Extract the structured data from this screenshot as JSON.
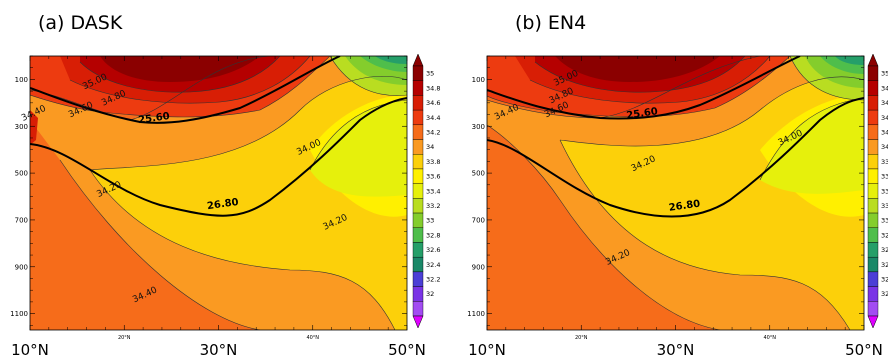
{
  "chart_data": [
    {
      "type": "contour",
      "title": "(a) DASK",
      "x_ticks": [
        {
          "value": 10,
          "label": "10°N",
          "size": "large"
        },
        {
          "value": 20,
          "label": "20°N",
          "size": "small"
        },
        {
          "value": 30,
          "label": "30°N",
          "size": "large"
        },
        {
          "value": 40,
          "label": "40°N",
          "size": "small"
        },
        {
          "value": 50,
          "label": "50°N",
          "size": "large"
        }
      ],
      "xlim": [
        10,
        50
      ],
      "y_ticks": [
        100,
        300,
        500,
        700,
        900,
        1100
      ],
      "ylim": [
        0,
        1170
      ],
      "y_inverted": true,
      "contour_labels": [
        {
          "text": "35.00",
          "x": 17.0,
          "y": 120
        },
        {
          "text": "34.80",
          "x": 19.0,
          "y": 190
        },
        {
          "text": "34.60",
          "x": 15.5,
          "y": 240
        },
        {
          "text": "34.40",
          "x": 10.5,
          "y": 255
        },
        {
          "text": "34.00",
          "x": 39.7,
          "y": 400
        },
        {
          "text": "34.20",
          "x": 18.5,
          "y": 580
        },
        {
          "text": "34.20",
          "x": 42.5,
          "y": 720
        },
        {
          "text": "34.40",
          "x": 22.3,
          "y": 1030
        }
      ],
      "density_labels": [
        {
          "text": "25.60",
          "x": 23.2,
          "y": 278
        },
        {
          "text": "26.80",
          "x": 30.5,
          "y": 645
        }
      ]
    },
    {
      "type": "contour",
      "title": "(b) EN4",
      "x_ticks": [
        {
          "value": 10,
          "label": "10°N",
          "size": "large"
        },
        {
          "value": 20,
          "label": "20°N",
          "size": "small"
        },
        {
          "value": 30,
          "label": "30°N",
          "size": "large"
        },
        {
          "value": 40,
          "label": "40°N",
          "size": "small"
        },
        {
          "value": 50,
          "label": "50°N",
          "size": "large"
        }
      ],
      "xlim": [
        10,
        50
      ],
      "y_ticks": [
        100,
        300,
        500,
        700,
        900,
        1100
      ],
      "ylim": [
        0,
        1170
      ],
      "y_inverted": true,
      "contour_labels": [
        {
          "text": "35.00",
          "x": 18.5,
          "y": 105
        },
        {
          "text": "34.80",
          "x": 18.0,
          "y": 180
        },
        {
          "text": "34.60",
          "x": 17.5,
          "y": 240
        },
        {
          "text": "34.40",
          "x": 12.2,
          "y": 250
        },
        {
          "text": "34.00",
          "x": 42.3,
          "y": 360
        },
        {
          "text": "34.20",
          "x": 26.7,
          "y": 470
        },
        {
          "text": "34.20",
          "x": 24.0,
          "y": 870
        }
      ],
      "density_labels": [
        {
          "text": "25.60",
          "x": 26.5,
          "y": 258
        },
        {
          "text": "26.80",
          "x": 31.0,
          "y": 652
        }
      ]
    }
  ],
  "colorbar": {
    "labels": [
      "35",
      "34.8",
      "34.6",
      "34.4",
      "34.2",
      "34",
      "33.8",
      "33.6",
      "33.4",
      "33.2",
      "33",
      "32.8",
      "32.6",
      "32.4",
      "32.2",
      "32"
    ],
    "colors": [
      "#8b0000",
      "#b50000",
      "#d81e05",
      "#ed3b10",
      "#f66c1a",
      "#fa9a22",
      "#fcd00a",
      "#fff000",
      "#e6f00c",
      "#b9dd21",
      "#84cd2c",
      "#4fbe4b",
      "#259f69",
      "#1a8868",
      "#4b3fd6",
      "#7a34e6",
      "#a24cf2"
    ],
    "top_color": "#8b0000",
    "bottom_color": "#dd00ff"
  }
}
